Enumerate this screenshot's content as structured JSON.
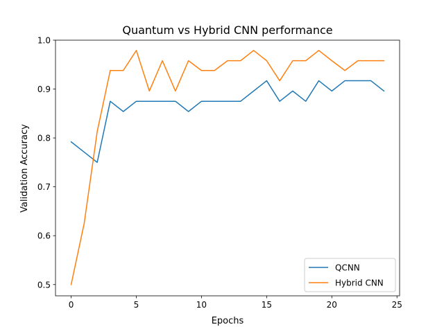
{
  "chart_data": {
    "type": "line",
    "title": "Quantum vs Hybrid CNN performance",
    "xlabel": "Epochs",
    "ylabel": "Validation Accuracy",
    "xlim": [
      -1.2,
      25.2
    ],
    "ylim": [
      0.477,
      1.0
    ],
    "x_ticks": [
      0,
      5,
      10,
      15,
      20,
      25
    ],
    "y_ticks": [
      0.5,
      0.6,
      0.7,
      0.8,
      0.9,
      1.0
    ],
    "x_tick_labels": [
      "0",
      "5",
      "10",
      "15",
      "20",
      "25"
    ],
    "y_tick_labels": [
      "0.5",
      "0.6",
      "0.7",
      "0.8",
      "0.9",
      "1.0"
    ],
    "grid": false,
    "legend_position": "lower-right",
    "x": [
      0,
      1,
      2,
      3,
      4,
      5,
      6,
      7,
      8,
      9,
      10,
      11,
      12,
      13,
      14,
      15,
      16,
      17,
      18,
      19,
      20,
      21,
      22,
      23,
      24
    ],
    "series": [
      {
        "name": "QCNN",
        "color": "#1f77b4",
        "values": [
          0.792,
          0.771,
          0.75,
          0.875,
          0.854,
          0.875,
          0.875,
          0.875,
          0.875,
          0.854,
          0.875,
          0.875,
          0.875,
          0.875,
          0.896,
          0.917,
          0.875,
          0.896,
          0.875,
          0.917,
          0.896,
          0.917,
          0.917,
          0.917,
          0.896
        ]
      },
      {
        "name": "Hybrid CNN",
        "color": "#ff7f0e",
        "values": [
          0.5,
          0.625,
          0.813,
          0.938,
          0.938,
          0.979,
          0.896,
          0.958,
          0.896,
          0.958,
          0.938,
          0.938,
          0.958,
          0.958,
          0.979,
          0.958,
          0.917,
          0.958,
          0.958,
          0.979,
          0.958,
          0.938,
          0.958,
          0.958,
          0.958
        ]
      }
    ]
  }
}
